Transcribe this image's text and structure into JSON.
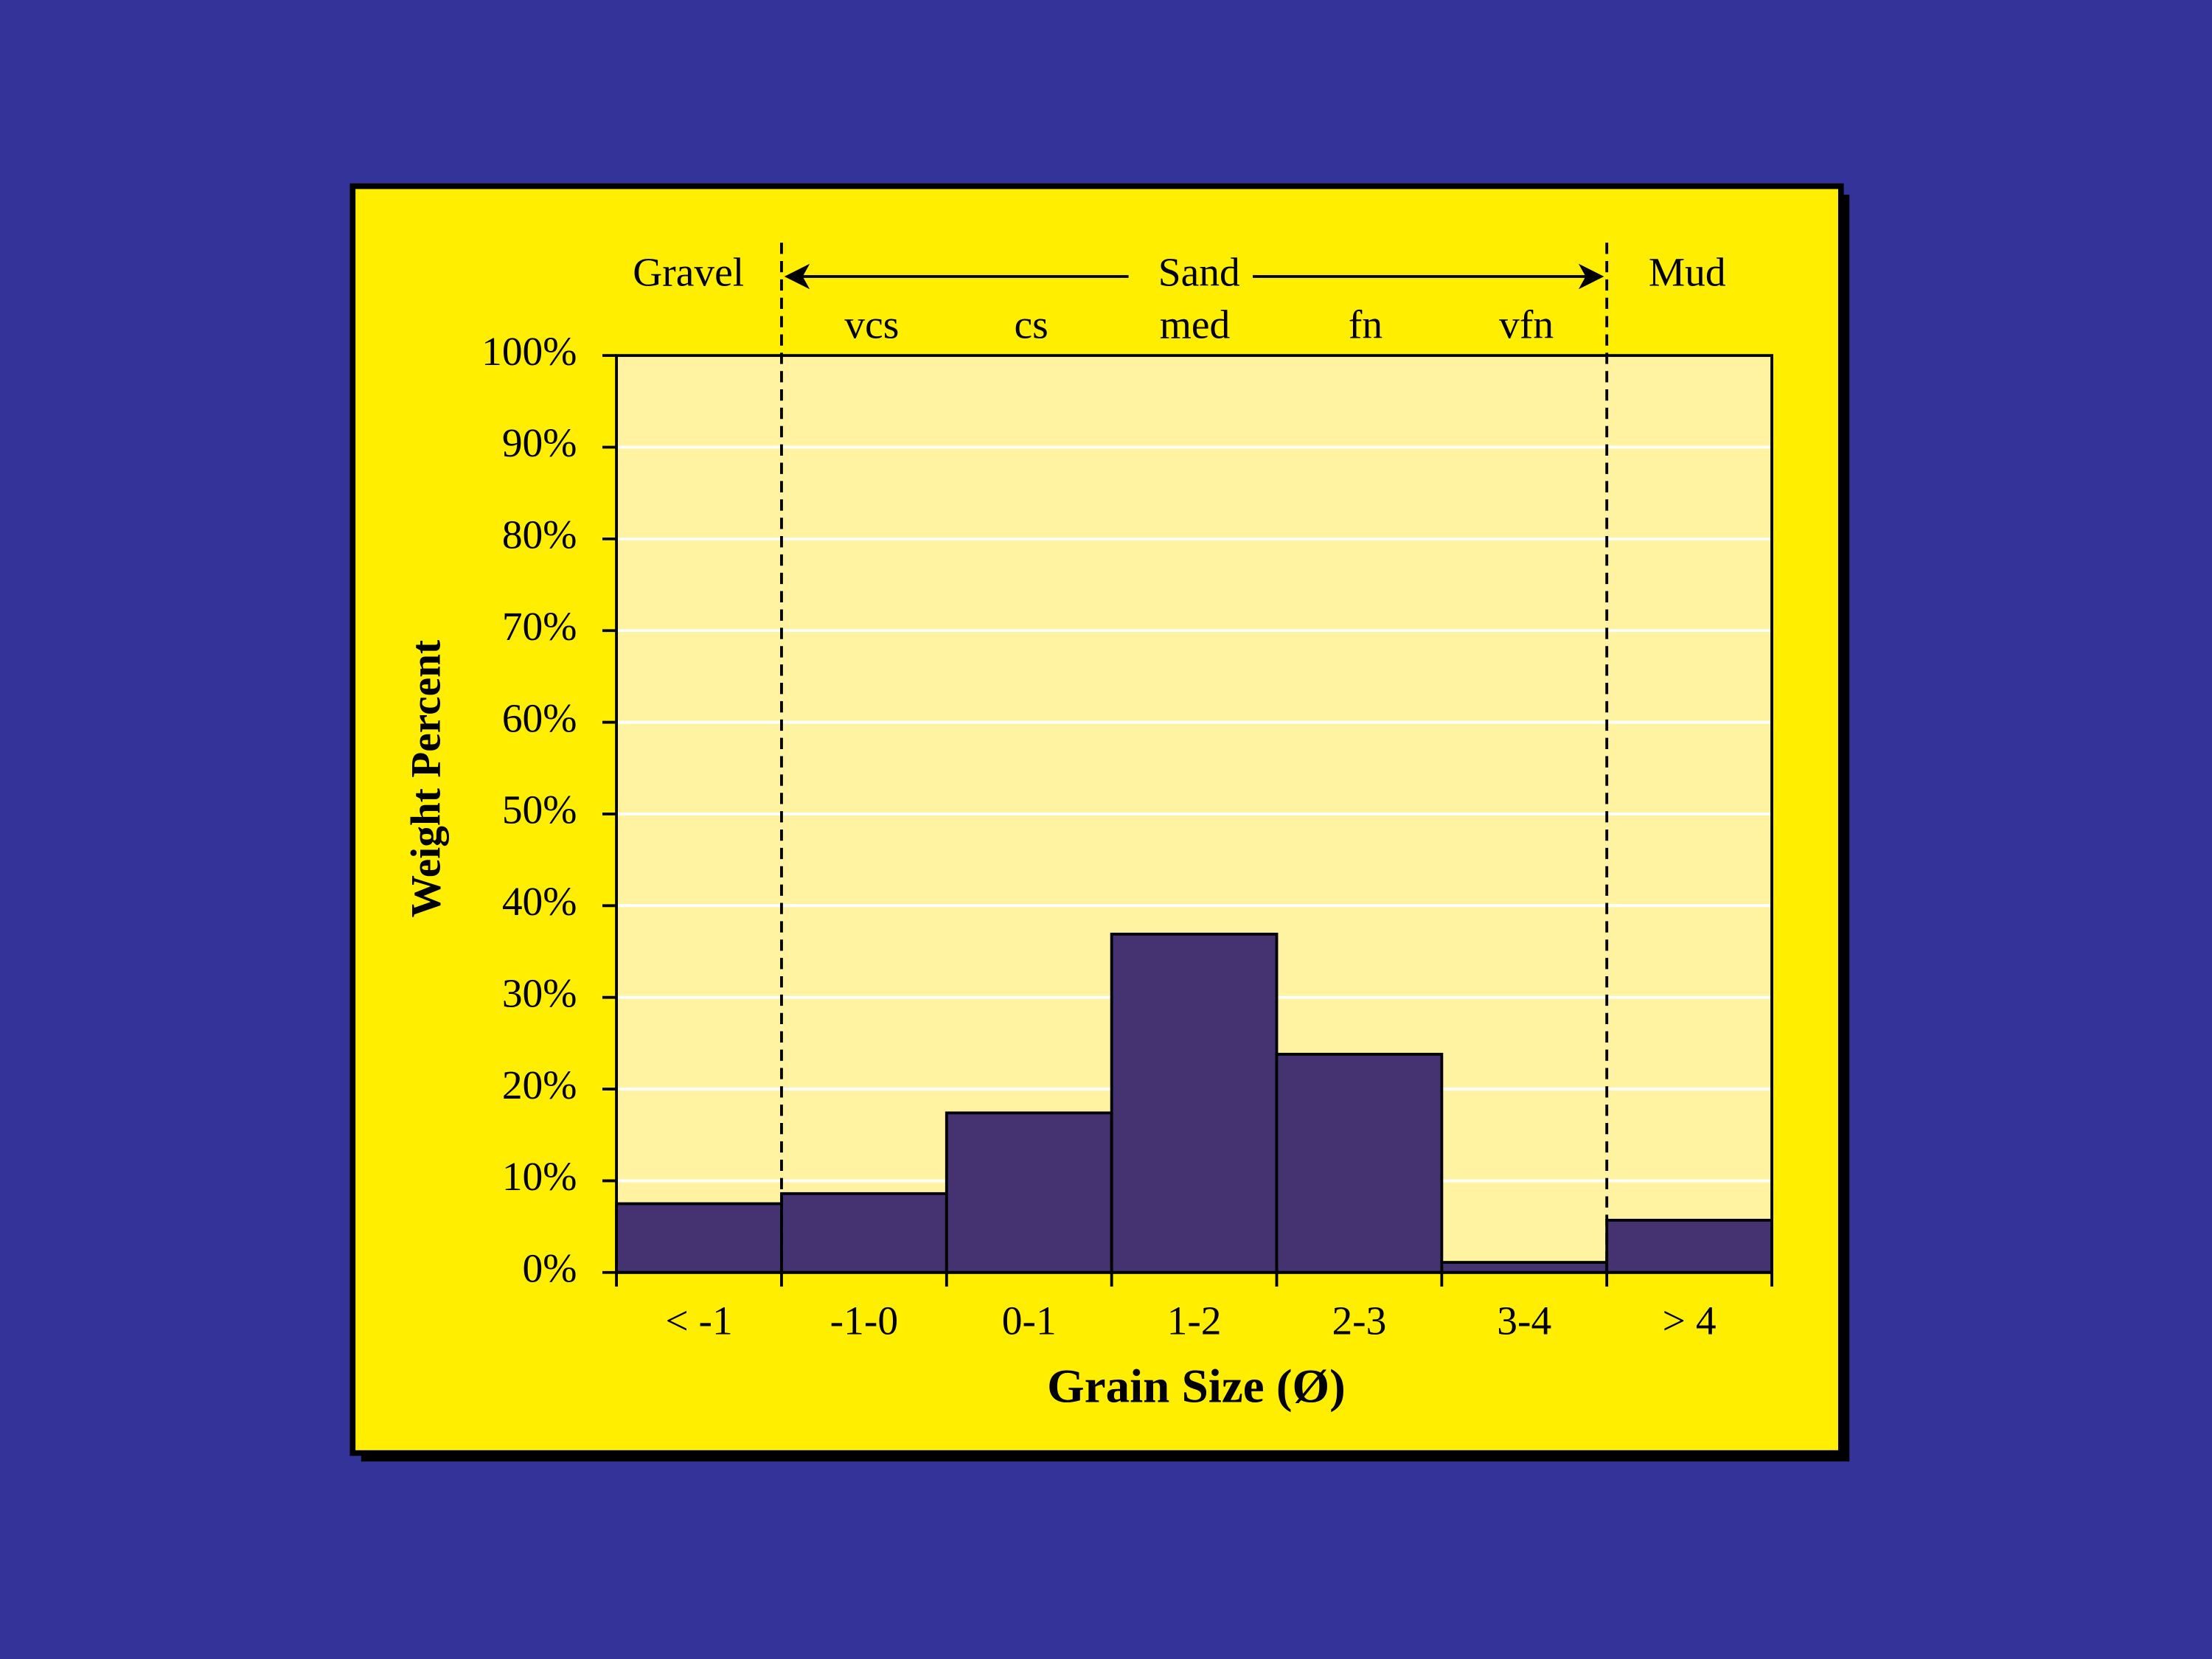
{
  "chart_data": {
    "type": "bar",
    "categories": [
      "< -1",
      "-1-0",
      "0-1",
      "1-2",
      "2-3",
      "3-4",
      "> 4"
    ],
    "values": [
      7.5,
      8.6,
      17.4,
      36.9,
      23.8,
      1.1,
      5.7
    ],
    "color": "#443370",
    "ylim": [
      0,
      100
    ],
    "yticks": [
      {
        "value": 0,
        "label": "0%"
      },
      {
        "value": 10,
        "label": "10%"
      },
      {
        "value": 20,
        "label": "20%"
      },
      {
        "value": 30,
        "label": "30%"
      },
      {
        "value": 40,
        "label": "40%"
      },
      {
        "value": 50,
        "label": "50%"
      },
      {
        "value": 60,
        "label": "60%"
      },
      {
        "value": 70,
        "label": "70%"
      },
      {
        "value": 80,
        "label": "80%"
      },
      {
        "value": 90,
        "label": "90%"
      },
      {
        "value": 100,
        "label": "100%"
      }
    ],
    "grid": true,
    "y_label": "Weight Percent",
    "x_label": "Grain Size (Ø)",
    "group_labels": [
      "Gravel",
      "Sand",
      "Mud"
    ],
    "class_labels": [
      "vcs",
      "cs",
      "med",
      "fn",
      "vfn"
    ]
  }
}
